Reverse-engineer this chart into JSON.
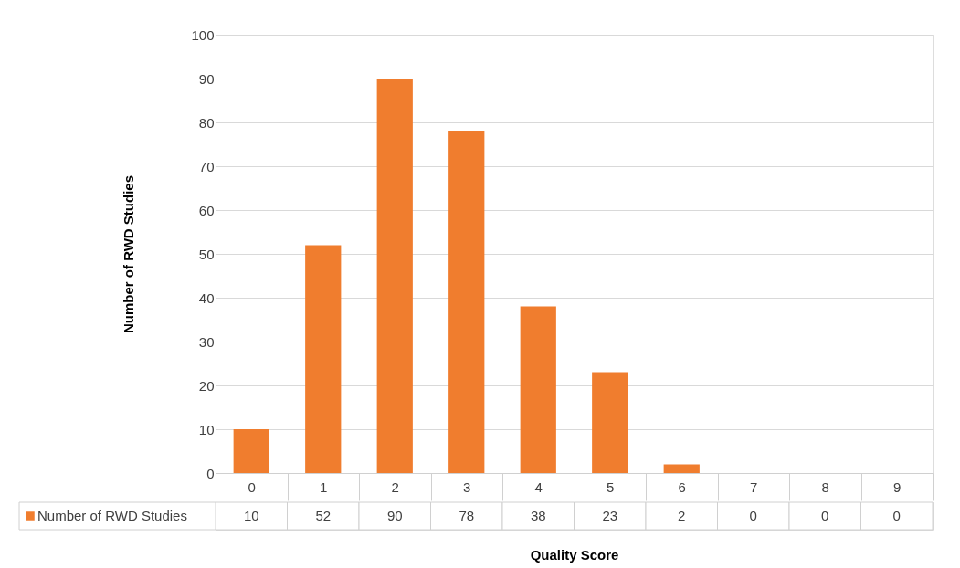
{
  "chart_data": {
    "type": "bar",
    "xlabel": "Quality Score",
    "ylabel": "Number of RWD Studies",
    "categories": [
      "0",
      "1",
      "2",
      "3",
      "4",
      "5",
      "6",
      "7",
      "8",
      "9"
    ],
    "series": [
      {
        "name": "Number of RWD Studies",
        "color": "#f07d2e",
        "values": [
          10,
          52,
          90,
          78,
          38,
          23,
          2,
          0,
          0,
          0
        ]
      }
    ],
    "ylim": [
      0,
      100
    ],
    "yticks": [
      0,
      10,
      20,
      30,
      40,
      50,
      60,
      70,
      80,
      90,
      100
    ],
    "grid": "y",
    "data_labels": true,
    "legend": "bottom left"
  }
}
